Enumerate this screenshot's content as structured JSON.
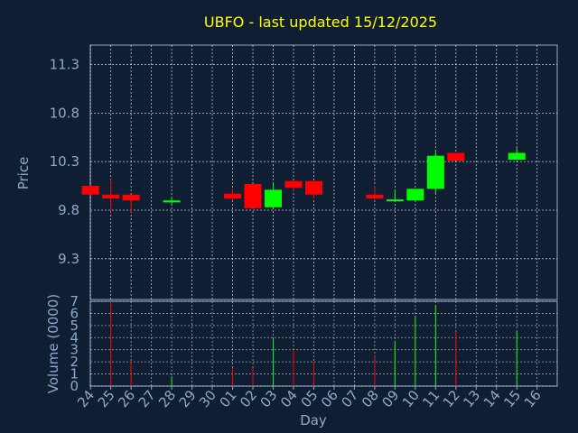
{
  "chart_data": [
    {
      "type": "candlestick",
      "title": "UBFO - last updated 15/12/2025",
      "ylabel": "Price",
      "ylim": [
        8.88,
        11.5
      ],
      "y_ticks": [
        "11.3",
        "10.8",
        "10.3",
        "9.8",
        "9.3"
      ],
      "y_tick_values": [
        11.3,
        10.8,
        10.3,
        9.8,
        9.3
      ],
      "grid": true,
      "up_color": "#00ff00",
      "down_color": "#ff0000",
      "candles": [
        {
          "day": "24",
          "open": 10.05,
          "high": 10.05,
          "low": 9.96,
          "close": 9.96
        },
        {
          "day": "25",
          "open": 9.96,
          "high": 10.12,
          "low": 9.78,
          "close": 9.92
        },
        {
          "day": "26",
          "open": 9.96,
          "high": 9.96,
          "low": 9.78,
          "close": 9.9
        },
        {
          "day": "28",
          "open": 9.88,
          "high": 9.94,
          "low": 9.86,
          "close": 9.9
        },
        {
          "day": "01",
          "open": 9.97,
          "high": 10.02,
          "low": 9.9,
          "close": 9.92
        },
        {
          "day": "02",
          "open": 10.07,
          "high": 10.07,
          "low": 9.81,
          "close": 9.82
        },
        {
          "day": "03",
          "open": 9.83,
          "high": 10.08,
          "low": 9.81,
          "close": 10.01
        },
        {
          "day": "04",
          "open": 10.1,
          "high": 10.1,
          "low": 10.0,
          "close": 10.03
        },
        {
          "day": "05",
          "open": 10.1,
          "high": 10.1,
          "low": 9.92,
          "close": 9.96
        },
        {
          "day": "08",
          "open": 9.96,
          "high": 10.05,
          "low": 9.91,
          "close": 9.92
        },
        {
          "day": "09",
          "open": 9.9,
          "high": 10.01,
          "low": 9.89,
          "close": 9.91
        },
        {
          "day": "10",
          "open": 9.9,
          "high": 10.01,
          "low": 9.89,
          "close": 10.02
        },
        {
          "day": "11",
          "open": 10.02,
          "high": 10.41,
          "low": 9.97,
          "close": 10.36
        },
        {
          "day": "12",
          "open": 10.39,
          "high": 10.39,
          "low": 10.31,
          "close": 10.31
        },
        {
          "day": "15",
          "open": 10.32,
          "high": 10.44,
          "low": 10.32,
          "close": 10.39
        }
      ]
    },
    {
      "type": "bar",
      "ylabel": "Volume (0000)",
      "xlabel": "Day",
      "ylim": [
        0,
        7
      ],
      "y_ticks": [
        "0",
        "1",
        "2",
        "3",
        "4",
        "5",
        "6",
        "7"
      ],
      "categories": [
        "24",
        "25",
        "26",
        "27",
        "28",
        "29",
        "30",
        "01",
        "02",
        "03",
        "04",
        "05",
        "06",
        "07",
        "08",
        "09",
        "10",
        "11",
        "12",
        "13",
        "14",
        "15",
        "16"
      ],
      "values": [
        0,
        7,
        2,
        0,
        0.8,
        0,
        0,
        1.5,
        1.5,
        4,
        3,
        2,
        0,
        0,
        2.5,
        3.7,
        5.8,
        6.7,
        4.5,
        0,
        0,
        4.5,
        0
      ],
      "colors": [
        "",
        "#ff0000",
        "#ff0000",
        "",
        "#00ff00",
        "",
        "",
        "#ff0000",
        "#ff0000",
        "#00ff00",
        "#ff0000",
        "#ff0000",
        "",
        "",
        "#ff0000",
        "#00ff00",
        "#00ff00",
        "#00ff00",
        "#ff0000",
        "",
        "",
        "#00ff00",
        ""
      ],
      "grid": true
    }
  ],
  "colors": {
    "background": "#0f1e33",
    "title": "#ffff00",
    "text": "#8fa9c8",
    "axis": "#8fa9c8",
    "grid": "#ffffff"
  }
}
